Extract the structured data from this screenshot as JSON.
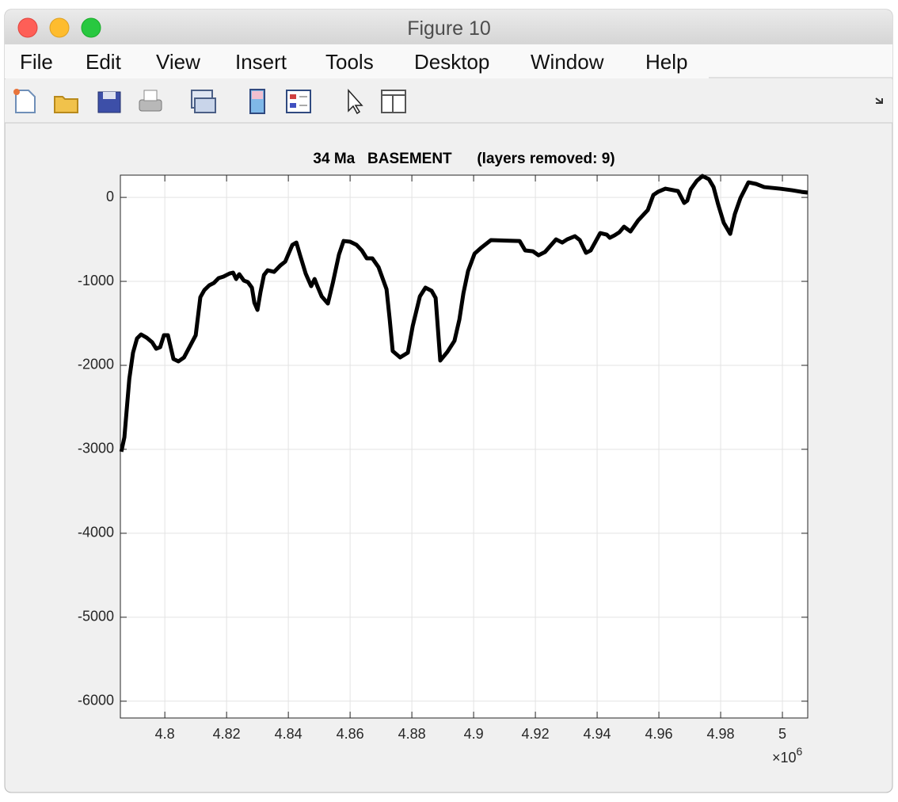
{
  "window_title": "Figure 10",
  "menu": [
    "File",
    "Edit",
    "View",
    "Insert",
    "Tools",
    "Desktop",
    "Window",
    "Help"
  ],
  "chart_data": {
    "type": "line",
    "title": "34 Ma   BASEMENT      (layers removed: 9)",
    "x": [
      4.7859,
      4.7869,
      4.7885,
      4.7897,
      4.791,
      4.7923,
      4.7941,
      4.7959,
      4.7972,
      4.7985,
      4.7997,
      4.801,
      4.8028,
      4.8044,
      4.8062,
      4.81,
      4.8115,
      4.8128,
      4.8144,
      4.8159,
      4.8174,
      4.819,
      4.821,
      4.8221,
      4.8231,
      4.8241,
      4.8256,
      4.8269,
      4.8282,
      4.829,
      4.83,
      4.831,
      4.8321,
      4.8333,
      4.8354,
      4.8374,
      4.839,
      4.8403,
      4.8413,
      4.8426,
      4.8438,
      4.8456,
      4.8474,
      4.8485,
      4.8495,
      4.8508,
      4.8528,
      4.8544,
      4.8564,
      4.8579,
      4.86,
      4.8621,
      4.8638,
      4.8654,
      4.8672,
      4.8692,
      4.8718,
      4.8728,
      4.8738,
      4.8762,
      4.8787,
      4.8803,
      4.8826,
      4.8844,
      4.8864,
      4.8877,
      4.8892,
      4.8915,
      4.8938,
      4.8954,
      4.8967,
      4.8982,
      4.9003,
      4.9023,
      4.9056,
      4.9149,
      4.9167,
      4.9192,
      4.921,
      4.9231,
      4.9267,
      4.9287,
      4.9303,
      4.9328,
      4.9344,
      4.9364,
      4.9379,
      4.941,
      4.9431,
      4.9441,
      4.9456,
      4.9472,
      4.9487,
      4.9508,
      4.9533,
      4.9564,
      4.9582,
      4.9597,
      4.9621,
      4.9662,
      4.9682,
      4.9692,
      4.9703,
      4.9723,
      4.9741,
      4.9762,
      4.9777,
      4.9792,
      4.981,
      4.9831,
      4.9846,
      4.9864,
      4.989,
      4.9915,
      4.9941,
      4.9992,
      5.0031,
      5.0062,
      5.0082
    ],
    "values": [
      -3028,
      -2858,
      -2160,
      -1849,
      -1679,
      -1632,
      -1670,
      -1726,
      -1802,
      -1783,
      -1642,
      -1642,
      -1925,
      -1953,
      -1906,
      -1642,
      -1189,
      -1104,
      -1047,
      -1019,
      -962,
      -943,
      -906,
      -896,
      -972,
      -915,
      -991,
      -1009,
      -1075,
      -1255,
      -1340,
      -1123,
      -925,
      -868,
      -887,
      -811,
      -764,
      -651,
      -566,
      -538,
      -689,
      -906,
      -1057,
      -972,
      -1066,
      -1179,
      -1264,
      -1019,
      -679,
      -519,
      -528,
      -566,
      -632,
      -726,
      -726,
      -830,
      -1094,
      -1443,
      -1830,
      -1906,
      -1849,
      -1528,
      -1179,
      -1075,
      -1113,
      -1198,
      -1943,
      -1840,
      -1708,
      -1453,
      -1141,
      -877,
      -670,
      -604,
      -509,
      -519,
      -632,
      -642,
      -689,
      -651,
      -500,
      -538,
      -500,
      -462,
      -509,
      -660,
      -632,
      -425,
      -443,
      -481,
      -453,
      -415,
      -349,
      -406,
      -274,
      -151,
      28,
      66,
      104,
      75,
      -66,
      -38,
      94,
      198,
      255,
      217,
      123,
      -85,
      -302,
      -434,
      -198,
      -9,
      179,
      160,
      123,
      104,
      85,
      66,
      57
    ],
    "color": "#000000",
    "xlim": [
      4.7856,
      5.0082
    ],
    "xticks": [
      4.8,
      4.82,
      4.84,
      4.86,
      4.88,
      4.9,
      4.92,
      4.94,
      4.96,
      4.98,
      5
    ],
    "x_exponent": {
      "base": "×10",
      "power": "6"
    },
    "ylim": [
      -6200,
      265
    ],
    "yticks": [
      -6000,
      -5000,
      -4000,
      -3000,
      -2000,
      -1000,
      0
    ],
    "grid": true
  }
}
